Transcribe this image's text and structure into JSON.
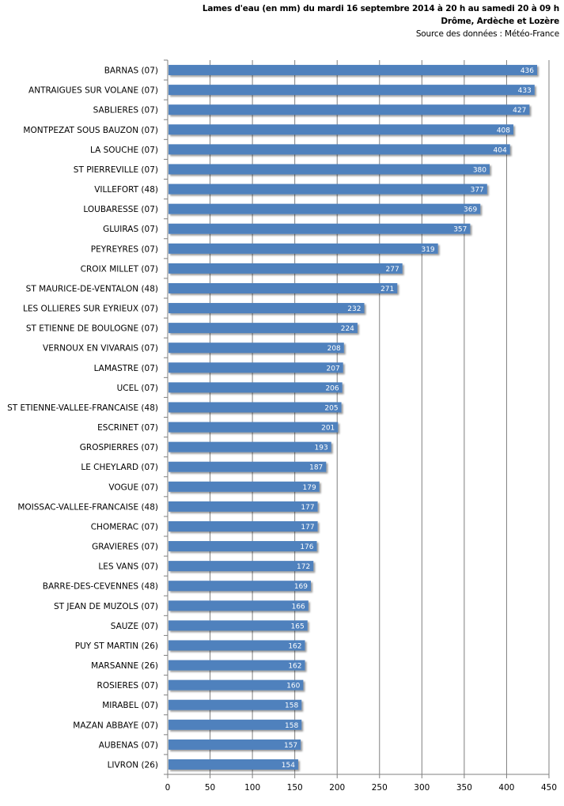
{
  "chart_data": {
    "type": "bar",
    "orientation": "horizontal",
    "title": "Lames d'eau (en mm) du mardi 16 septembre 2014 à 20 h au samedi 20 à 09 h",
    "subtitle": "Drôme, Ardèche et Lozère",
    "source": "Source des données : Météo-France",
    "xlabel": "",
    "ylabel": "",
    "xlim": [
      0,
      450
    ],
    "xticks": [
      0,
      50,
      100,
      150,
      200,
      250,
      300,
      350,
      400,
      450
    ],
    "grid": true,
    "legend": "none",
    "bar_color": "#4f81bd",
    "categories": [
      "BARNAS (07)",
      "ANTRAIGUES SUR VOLANE (07)",
      "SABLIERES (07)",
      "MONTPEZAT SOUS BAUZON (07)",
      "LA SOUCHE (07)",
      "ST PIERREVILLE (07)",
      "VILLEFORT (48)",
      "LOUBARESSE (07)",
      "GLUIRAS (07)",
      "PEYREYRES (07)",
      "CROIX MILLET (07)",
      "ST MAURICE-DE-VENTALON (48)",
      "LES OLLIERES SUR EYRIEUX (07)",
      "ST ETIENNE DE BOULOGNE (07)",
      "VERNOUX EN VIVARAIS (07)",
      "LAMASTRE (07)",
      "UCEL (07)",
      "ST ETIENNE-VALLEE-FRANCAISE (48)",
      "ESCRINET (07)",
      "GROSPIERRES (07)",
      "LE CHEYLARD (07)",
      "VOGUE (07)",
      "MOISSAC-VALLEE-FRANCAISE (48)",
      "CHOMERAC (07)",
      "GRAVIERES (07)",
      "LES VANS (07)",
      "BARRE-DES-CEVENNES (48)",
      "ST JEAN DE MUZOLS (07)",
      "SAUZE (07)",
      "PUY ST MARTIN (26)",
      "MARSANNE (26)",
      "ROSIERES (07)",
      "MIRABEL (07)",
      "MAZAN ABBAYE (07)",
      "AUBENAS (07)",
      "LIVRON (26)"
    ],
    "values": [
      436,
      433,
      427,
      408,
      404,
      380,
      377,
      369,
      357,
      319,
      277,
      271,
      232,
      224,
      208,
      207,
      206,
      205,
      201,
      193,
      187,
      179,
      177,
      177,
      176,
      172,
      169,
      166,
      165,
      162,
      162,
      160,
      158,
      158,
      157,
      154
    ]
  }
}
